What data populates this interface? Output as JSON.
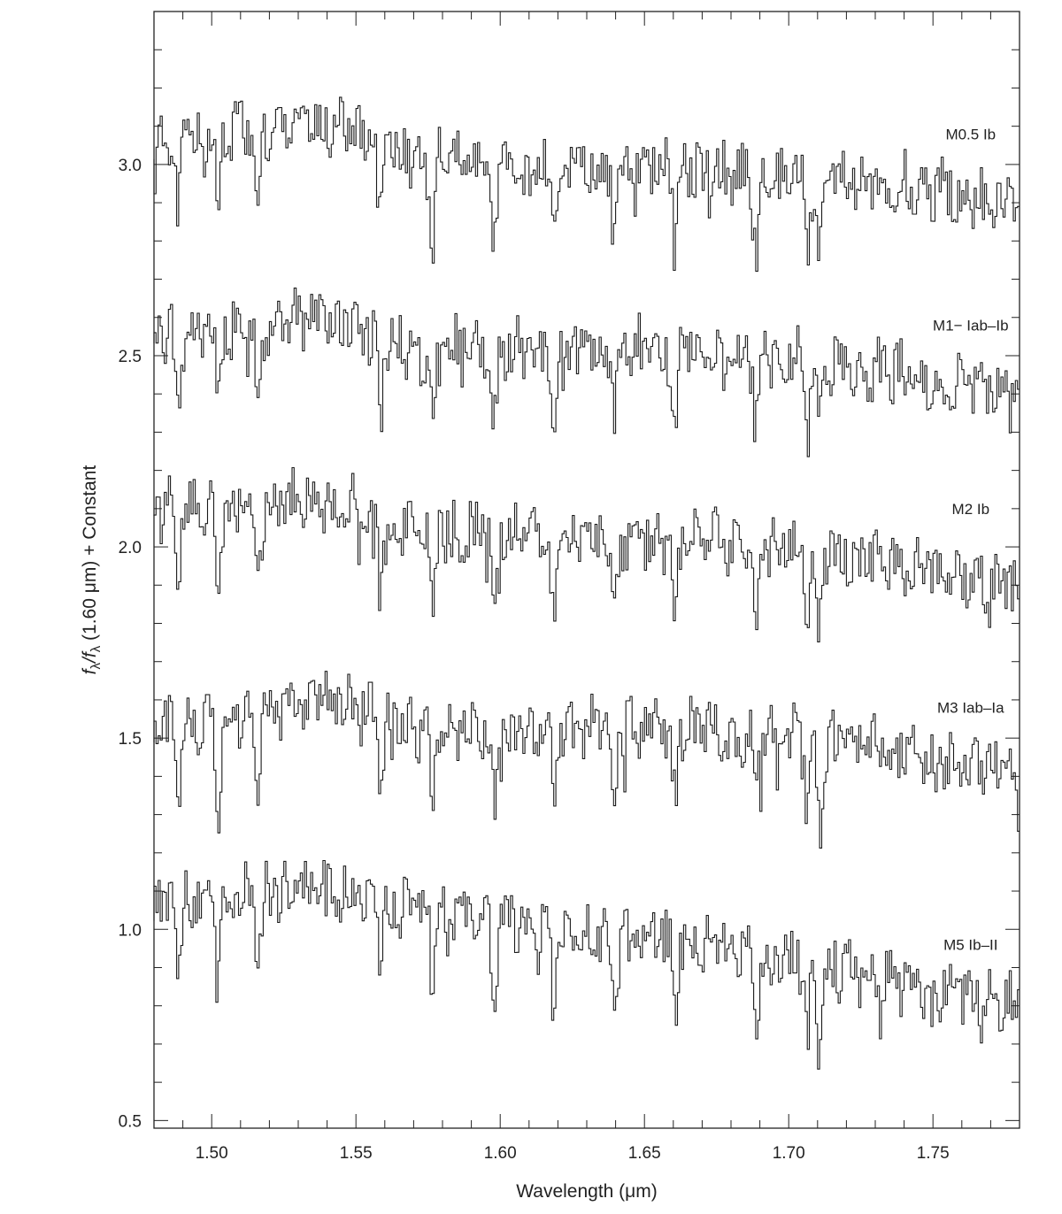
{
  "chart_data": {
    "type": "line",
    "xlabel": "Wavelength (μm)",
    "ylabel": {
      "f1": "f",
      "s1": "λ",
      "mid": "/f",
      "s2": "λ",
      "rest": " (1.60 μm) + Constant"
    },
    "xlim": [
      1.48,
      1.78
    ],
    "ylim": [
      0.48,
      3.4
    ],
    "x_ticks": [
      1.5,
      1.55,
      1.6,
      1.65,
      1.7,
      1.75
    ],
    "x_tick_labels": [
      "1.50",
      "1.55",
      "1.60",
      "1.65",
      "1.70",
      "1.75"
    ],
    "y_ticks": [
      0.5,
      1.0,
      1.5,
      2.0,
      2.5,
      3.0
    ],
    "y_tick_labels": [
      "0.5",
      "1.0",
      "1.5",
      "2.0",
      "2.5",
      "3.0"
    ],
    "grid": false,
    "legend": "none",
    "line_color": "#1a1a1a",
    "series": [
      {
        "name": "M0.5 Ib",
        "label_x": 1.76,
        "label_y": 3.08,
        "offset": 3.0,
        "start": 3.07,
        "end": 2.9,
        "anchors": [
          [
            1.48,
            3.07
          ],
          [
            1.54,
            3.1
          ],
          [
            1.57,
            3.02
          ],
          [
            1.62,
            3.0
          ],
          [
            1.65,
            3.0
          ],
          [
            1.7,
            2.97
          ],
          [
            1.74,
            2.95
          ],
          [
            1.78,
            2.9
          ]
        ]
      },
      {
        "name": "M1− Iab–Ib",
        "label_x": 1.76,
        "label_y": 2.58,
        "offset": 2.5,
        "start": 2.56,
        "end": 2.4,
        "anchors": [
          [
            1.48,
            2.56
          ],
          [
            1.54,
            2.6
          ],
          [
            1.57,
            2.52
          ],
          [
            1.62,
            2.52
          ],
          [
            1.65,
            2.52
          ],
          [
            1.7,
            2.5
          ],
          [
            1.74,
            2.45
          ],
          [
            1.78,
            2.4
          ]
        ]
      },
      {
        "name": "M2 Ib",
        "label_x": 1.76,
        "label_y": 2.1,
        "offset": 2.0,
        "start": 2.1,
        "end": 1.9,
        "anchors": [
          [
            1.48,
            2.1
          ],
          [
            1.54,
            2.12
          ],
          [
            1.57,
            2.05
          ],
          [
            1.62,
            2.03
          ],
          [
            1.65,
            2.02
          ],
          [
            1.7,
            2.0
          ],
          [
            1.74,
            1.96
          ],
          [
            1.78,
            1.9
          ]
        ]
      },
      {
        "name": "M3 Iab–Ia",
        "label_x": 1.76,
        "label_y": 1.58,
        "offset": 1.5,
        "start": 1.52,
        "end": 1.4,
        "anchors": [
          [
            1.48,
            1.52
          ],
          [
            1.54,
            1.6
          ],
          [
            1.57,
            1.52
          ],
          [
            1.62,
            1.52
          ],
          [
            1.65,
            1.53
          ],
          [
            1.7,
            1.5
          ],
          [
            1.74,
            1.46
          ],
          [
            1.78,
            1.4
          ]
        ]
      },
      {
        "name": "M5 Ib–II",
        "label_x": 1.76,
        "label_y": 0.96,
        "offset": 1.0,
        "start": 1.07,
        "end": 0.8,
        "anchors": [
          [
            1.48,
            1.07
          ],
          [
            1.54,
            1.1
          ],
          [
            1.57,
            1.05
          ],
          [
            1.62,
            1.0
          ],
          [
            1.65,
            0.98
          ],
          [
            1.7,
            0.93
          ],
          [
            1.74,
            0.86
          ],
          [
            1.78,
            0.8
          ]
        ]
      }
    ],
    "absorption_lines_um": [
      1.4888,
      1.5025,
      1.5165,
      1.559,
      1.577,
      1.5985,
      1.619,
      1.64,
      1.661,
      1.689,
      1.707,
      1.711
    ]
  }
}
